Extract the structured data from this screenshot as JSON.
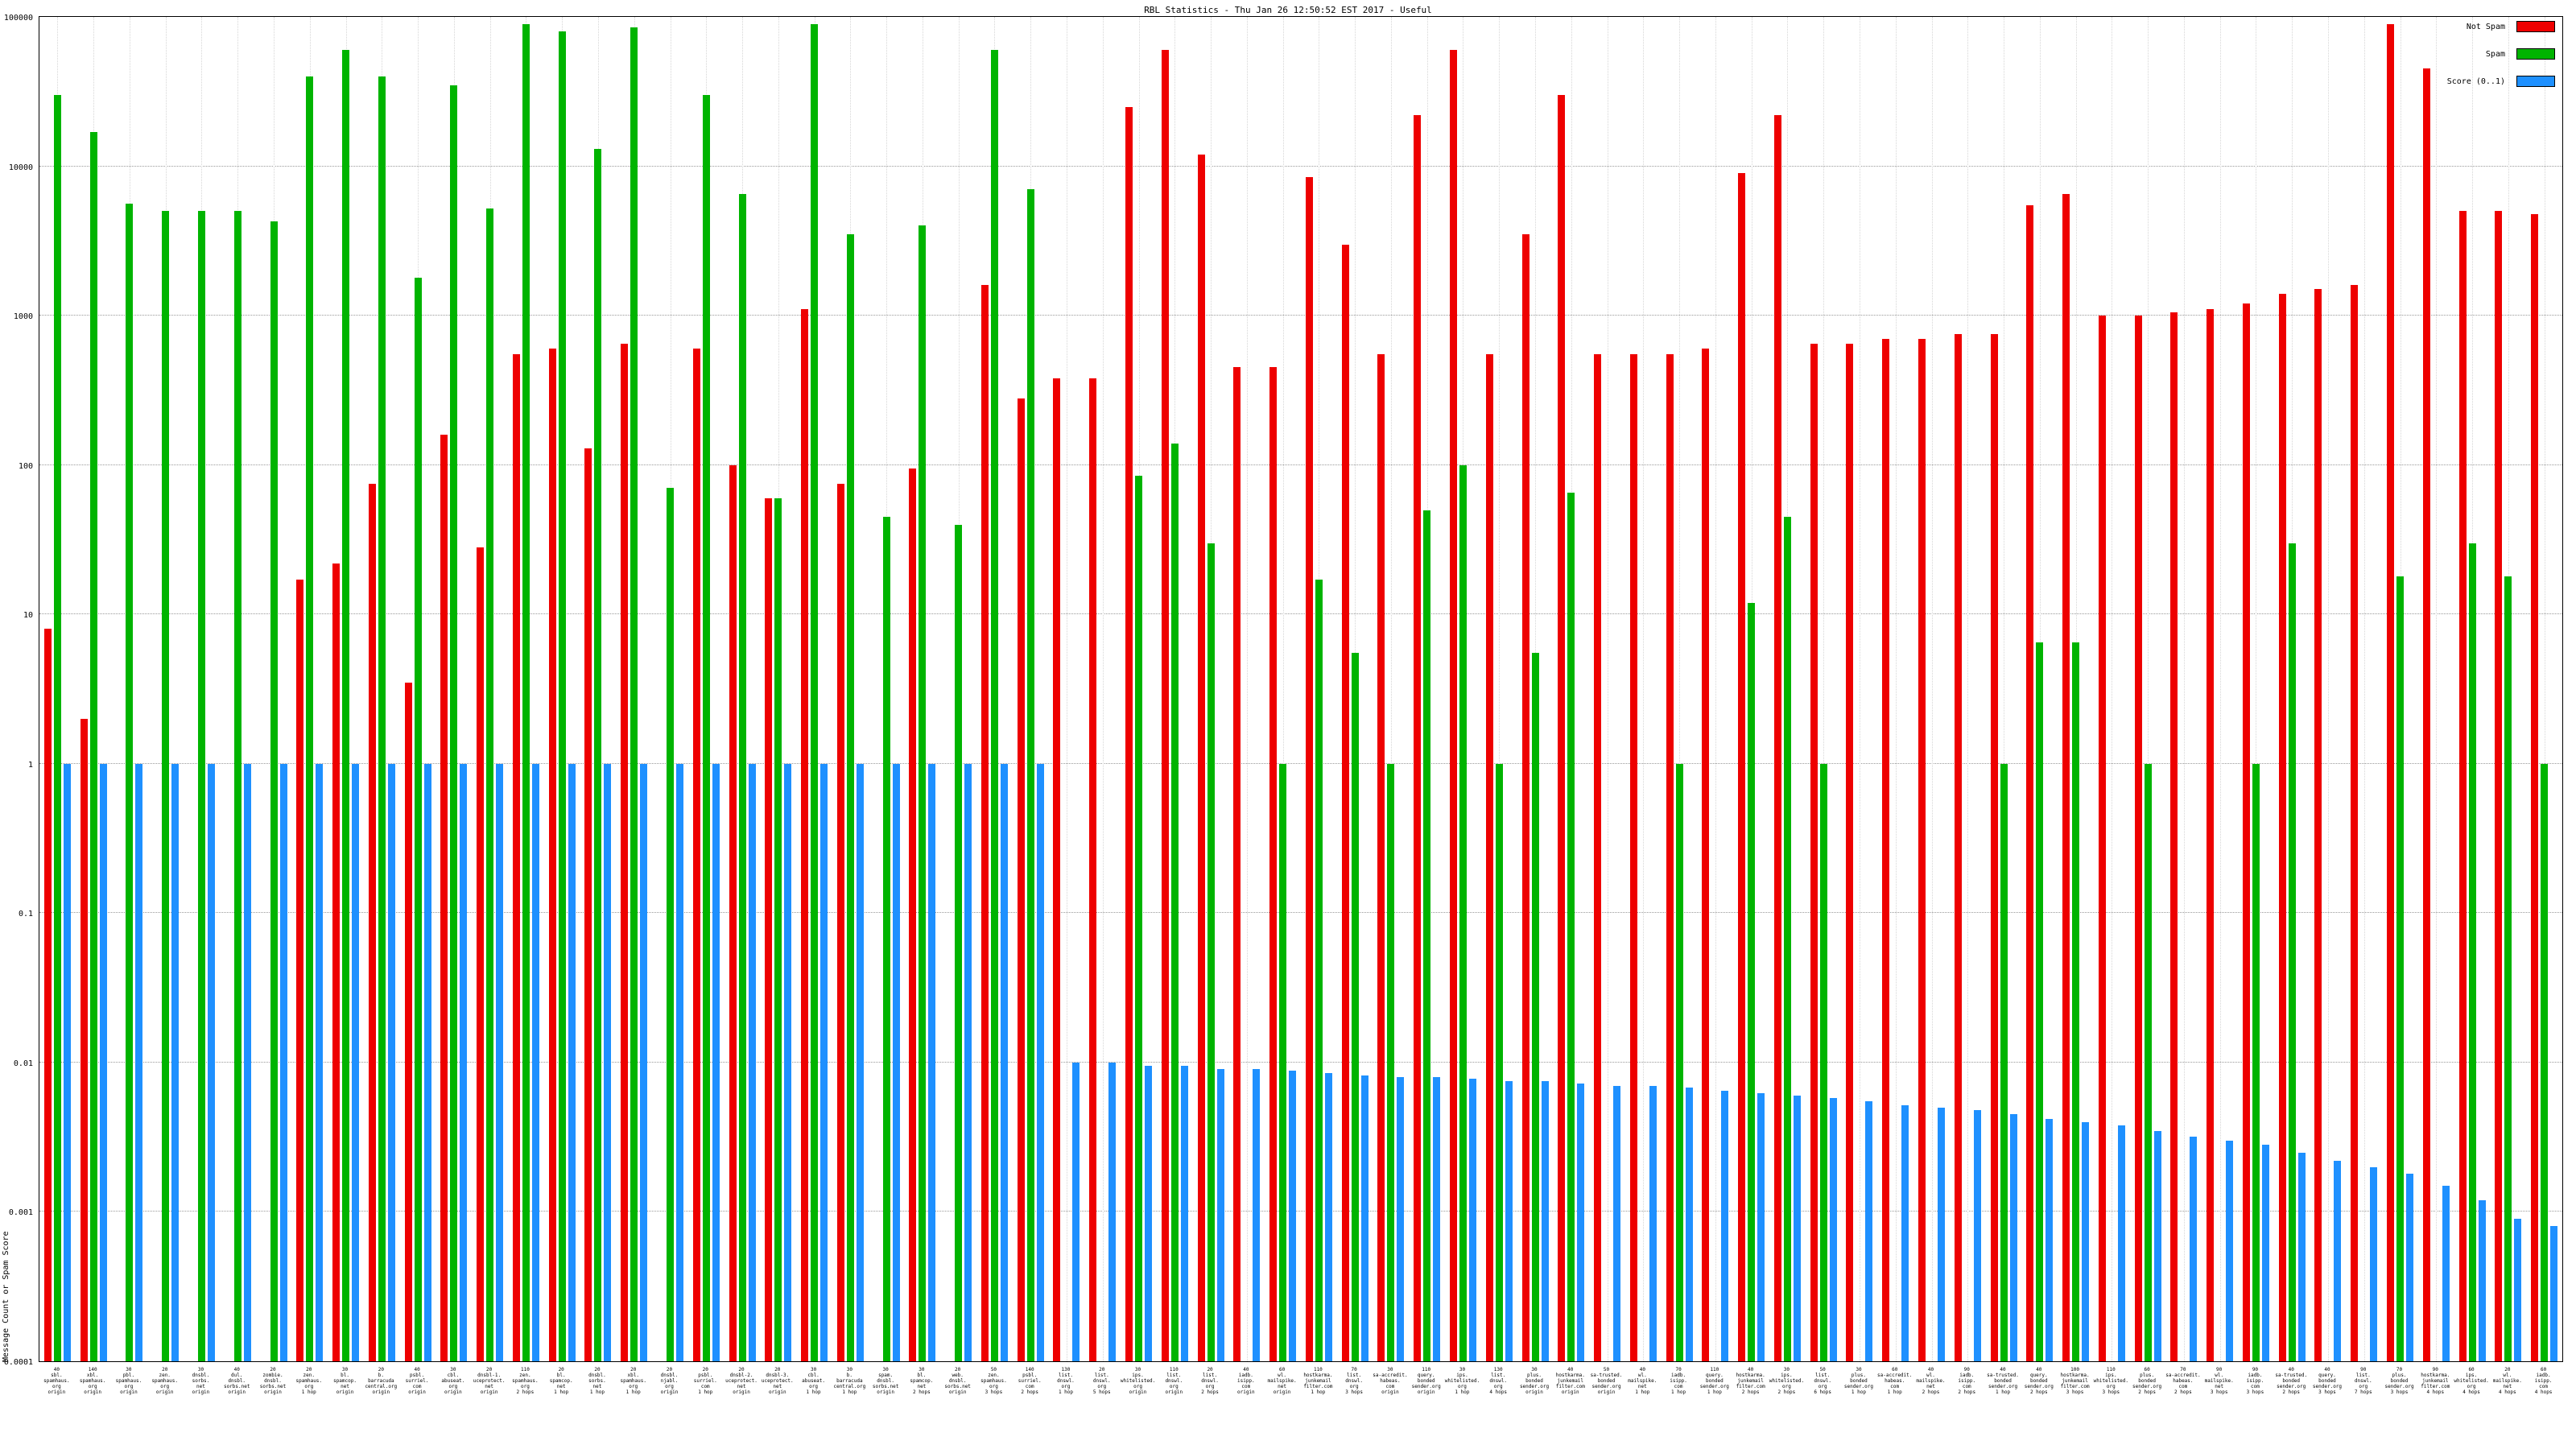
{
  "title": "RBL Statistics - Thu Jan 26 12:50:52 EST 2017 - Useful",
  "y_axis_label": "Message Count or Spam Score",
  "legend": [
    {
      "label": "Not Spam",
      "color": "#ee0000"
    },
    {
      "label": "Spam",
      "color": "#00b400"
    },
    {
      "label": "Score (0..1)",
      "color": "#1e90ff"
    }
  ],
  "chart_data": {
    "type": "bar",
    "y_scale": "log",
    "ylim": [
      0.0001,
      100000
    ],
    "y_ticks": [
      "100000",
      "10000",
      "1000",
      "100",
      "10",
      "1",
      "0.1",
      "0.01",
      "0.001",
      "0.0001"
    ],
    "grid": true,
    "legend_position": "top-right",
    "categories": [
      [
        "40",
        "sbl.",
        "spamhaus.",
        "org",
        "origin"
      ],
      [
        "140",
        "xbl.",
        "spamhaus.",
        "org",
        "origin"
      ],
      [
        "30",
        "pbl.",
        "spamhaus.",
        "org",
        "origin"
      ],
      [
        "20",
        "zen.",
        "spamhaus.",
        "org",
        "origin"
      ],
      [
        "30",
        "dnsbl.",
        "sorbs.",
        "net",
        "origin"
      ],
      [
        "40",
        "dul.",
        "dnsbl.",
        "sorbs.net",
        "origin"
      ],
      [
        "20",
        "zombie.",
        "dnsbl.",
        "sorbs.net",
        "origin"
      ],
      [
        "20",
        "zen.",
        "spamhaus.",
        "org",
        "1 hop"
      ],
      [
        "30",
        "bl.",
        "spamcop.",
        "net",
        "origin"
      ],
      [
        "20",
        "b.",
        "barracuda",
        "central.org",
        "origin"
      ],
      [
        "40",
        "psbl.",
        "surriel.",
        "com",
        "origin"
      ],
      [
        "30",
        "cbl.",
        "abuseat.",
        "org",
        "origin"
      ],
      [
        "20",
        "dnsbl-1.",
        "uceprotect.",
        "net",
        "origin"
      ],
      [
        "110",
        "zen.",
        "spamhaus.",
        "org",
        "2 hops"
      ],
      [
        "20",
        "bl.",
        "spamcop.",
        "net",
        "1 hop"
      ],
      [
        "20",
        "dnsbl.",
        "sorbs.",
        "net",
        "1 hop"
      ],
      [
        "20",
        "xbl.",
        "spamhaus.",
        "org",
        "1 hop"
      ],
      [
        "20",
        "dnsbl.",
        "njabl.",
        "org",
        "origin"
      ],
      [
        "20",
        "psbl.",
        "surriel.",
        "com",
        "1 hop"
      ],
      [
        "20",
        "dnsbl-2.",
        "uceprotect.",
        "net",
        "origin"
      ],
      [
        "20",
        "dnsbl-3.",
        "uceprotect.",
        "net",
        "origin"
      ],
      [
        "30",
        "cbl.",
        "abuseat.",
        "org",
        "1 hop"
      ],
      [
        "30",
        "b.",
        "barracuda",
        "central.org",
        "1 hop"
      ],
      [
        "30",
        "spam.",
        "dnsbl.",
        "sorbs.net",
        "origin"
      ],
      [
        "30",
        "bl.",
        "spamcop.",
        "net",
        "2 hops"
      ],
      [
        "20",
        "web.",
        "dnsbl.",
        "sorbs.net",
        "origin"
      ],
      [
        "50",
        "zen.",
        "spamhaus.",
        "org",
        "3 hops"
      ],
      [
        "140",
        "psbl.",
        "surriel.",
        "com",
        "2 hops"
      ],
      [
        "130",
        "list.",
        "dnswl.",
        "org",
        "1 hop"
      ],
      [
        "20",
        "list.",
        "dnswl.",
        "org",
        "5 hops"
      ],
      [
        "30",
        "ips.",
        "whitelisted.",
        "org",
        "origin"
      ],
      [
        "110",
        "list.",
        "dnswl.",
        "org",
        "origin"
      ],
      [
        "20",
        "list.",
        "dnswl.",
        "org",
        "2 hops"
      ],
      [
        "40",
        "iadb.",
        "isipp.",
        "com",
        "origin"
      ],
      [
        "60",
        "wl.",
        "mailspike.",
        "net",
        "origin"
      ],
      [
        "110",
        "hostkarma.",
        "junkemail",
        "filter.com",
        "1 hop"
      ],
      [
        "70",
        "list.",
        "dnswl.",
        "org",
        "3 hops"
      ],
      [
        "30",
        "sa-accredit.",
        "habeas.",
        "com",
        "origin"
      ],
      [
        "110",
        "query.",
        "bonded",
        "sender.org",
        "origin"
      ],
      [
        "30",
        "ips.",
        "whitelisted.",
        "org",
        "1 hop"
      ],
      [
        "130",
        "list.",
        "dnswl.",
        "org",
        "4 hops"
      ],
      [
        "30",
        "plus.",
        "bonded",
        "sender.org",
        "origin"
      ],
      [
        "40",
        "hostkarma.",
        "junkemail",
        "filter.com",
        "origin"
      ],
      [
        "50",
        "sa-trusted.",
        "bonded",
        "sender.org",
        "origin"
      ],
      [
        "40",
        "wl.",
        "mailspike.",
        "net",
        "1 hop"
      ],
      [
        "70",
        "iadb.",
        "isipp.",
        "com",
        "1 hop"
      ],
      [
        "110",
        "query.",
        "bonded",
        "sender.org",
        "1 hop"
      ],
      [
        "40",
        "hostkarma.",
        "junkemail",
        "filter.com",
        "2 hops"
      ],
      [
        "30",
        "ips.",
        "whitelisted.",
        "org",
        "2 hops"
      ],
      [
        "50",
        "list.",
        "dnswl.",
        "org",
        "6 hops"
      ],
      [
        "30",
        "plus.",
        "bonded",
        "sender.org",
        "1 hop"
      ],
      [
        "60",
        "sa-accredit.",
        "habeas.",
        "com",
        "1 hop"
      ],
      [
        "40",
        "wl.",
        "mailspike.",
        "net",
        "2 hops"
      ],
      [
        "90",
        "iadb.",
        "isipp.",
        "com",
        "2 hops"
      ],
      [
        "40",
        "sa-trusted.",
        "bonded",
        "sender.org",
        "1 hop"
      ],
      [
        "40",
        "query.",
        "bonded",
        "sender.org",
        "2 hops"
      ],
      [
        "100",
        "hostkarma.",
        "junkemail",
        "filter.com",
        "3 hops"
      ],
      [
        "110",
        "ips.",
        "whitelisted.",
        "org",
        "3 hops"
      ],
      [
        "60",
        "plus.",
        "bonded",
        "sender.org",
        "2 hops"
      ],
      [
        "70",
        "sa-accredit.",
        "habeas.",
        "com",
        "2 hops"
      ],
      [
        "90",
        "wl.",
        "mailspike.",
        "net",
        "3 hops"
      ],
      [
        "90",
        "iadb.",
        "isipp.",
        "com",
        "3 hops"
      ],
      [
        "40",
        "sa-trusted.",
        "bonded",
        "sender.org",
        "2 hops"
      ],
      [
        "40",
        "query.",
        "bonded",
        "sender.org",
        "3 hops"
      ],
      [
        "90",
        "list.",
        "dnswl.",
        "org",
        "7 hops"
      ],
      [
        "70",
        "plus.",
        "bonded",
        "sender.org",
        "3 hops"
      ],
      [
        "90",
        "hostkarma.",
        "junkemail",
        "filter.com",
        "4 hops"
      ],
      [
        "60",
        "ips.",
        "whitelisted.",
        "org",
        "4 hops"
      ],
      [
        "20",
        "wl.",
        "mailspike.",
        "net",
        "4 hops"
      ],
      [
        "60",
        "iadb.",
        "isipp.",
        "com",
        "4 hops"
      ]
    ],
    "series": [
      {
        "name": "Not Spam",
        "color": "#ee0000",
        "values": [
          8,
          2,
          0,
          0,
          0,
          0,
          0,
          17,
          22,
          75,
          3.5,
          160,
          28,
          550,
          600,
          130,
          650,
          0,
          600,
          100,
          60,
          1100,
          75,
          0,
          95,
          0,
          1600,
          280,
          380,
          380,
          25000,
          60000,
          12000,
          450,
          450,
          8500,
          3000,
          550,
          22000,
          60000,
          550,
          3500,
          30000,
          550,
          550,
          550,
          600,
          9000,
          22000,
          650,
          650,
          700,
          700,
          750,
          750,
          5500,
          6500,
          1000,
          1000,
          1050,
          1100,
          1200,
          1400,
          1500,
          1600,
          90000,
          45000,
          5000,
          5000,
          4800
        ]
      },
      {
        "name": "Spam",
        "color": "#00b400",
        "values": [
          30000,
          17000,
          5600,
          5000,
          5000,
          5000,
          4300,
          40000,
          60000,
          40000,
          1800,
          35000,
          5200,
          90000,
          80000,
          13000,
          85000,
          70,
          30000,
          6500,
          60,
          90000,
          3500,
          45,
          4000,
          40,
          60000,
          7000,
          0,
          0,
          85,
          140,
          30,
          0,
          1,
          17,
          5.5,
          1,
          50,
          100,
          1,
          5.5,
          65,
          0,
          0,
          1,
          0,
          12,
          45,
          1,
          0,
          0,
          0,
          0,
          1,
          6.5,
          6.5,
          0,
          1,
          0,
          0,
          1,
          30,
          0,
          0,
          18,
          0,
          30,
          18,
          1
        ]
      },
      {
        "name": "Score (0..1)",
        "color": "#1e90ff",
        "values": [
          1,
          1,
          1,
          1,
          1,
          1,
          1,
          1,
          1,
          1,
          1,
          1,
          1,
          1,
          1,
          1,
          1,
          1,
          1,
          1,
          1,
          1,
          1,
          1,
          1,
          1,
          1,
          1,
          0.01,
          0.01,
          0.0095,
          0.0095,
          0.009,
          0.009,
          0.0088,
          0.0085,
          0.0082,
          0.008,
          0.008,
          0.0078,
          0.0075,
          0.0075,
          0.0072,
          0.007,
          0.007,
          0.0068,
          0.0065,
          0.0062,
          0.006,
          0.0058,
          0.0055,
          0.0052,
          0.005,
          0.0048,
          0.0045,
          0.0042,
          0.004,
          0.0038,
          0.0035,
          0.0032,
          0.003,
          0.0028,
          0.0025,
          0.0022,
          0.002,
          0.0018,
          0.0015,
          0.0012,
          0.0009,
          0.0008
        ]
      }
    ]
  }
}
